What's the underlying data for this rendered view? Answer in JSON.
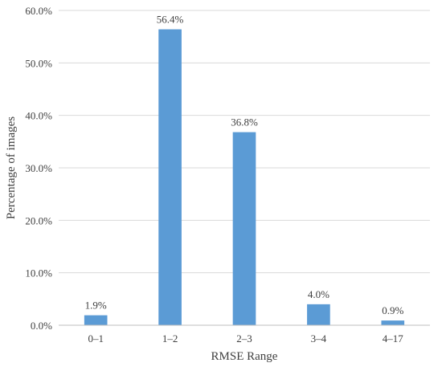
{
  "chart_data": {
    "type": "bar",
    "title": "",
    "xlabel": "RMSE Range",
    "ylabel": "Percentage of images",
    "categories": [
      "0–1",
      "1–2",
      "2–3",
      "3–4",
      "4–17"
    ],
    "values": [
      1.9,
      56.4,
      36.8,
      4.0,
      0.9
    ],
    "value_labels": [
      "1.9%",
      "56.4%",
      "36.8%",
      "4.0%",
      "0.9%"
    ],
    "ylim": [
      0,
      60
    ],
    "yticks": [
      0,
      10,
      20,
      30,
      40,
      50,
      60
    ],
    "ytick_labels": [
      "0.0%",
      "10.0%",
      "20.0%",
      "30.0%",
      "40.0%",
      "50.0%",
      "60.0%"
    ],
    "grid": true,
    "legend": "none",
    "bar_color": "#5b9bd5"
  }
}
